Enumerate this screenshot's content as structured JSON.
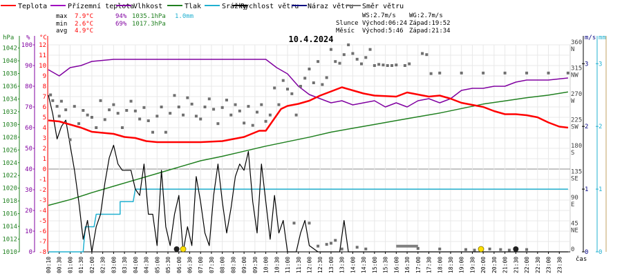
{
  "chart_data": {
    "type": "line",
    "title": "10.4.2024",
    "legend": [
      {
        "name": "Teplota",
        "color": "#ff0000"
      },
      {
        "name": "Přízemní teplota",
        "color": "#a000c0"
      },
      {
        "name": "Vlhkost",
        "color": "#8000a0"
      },
      {
        "name": "Tlak",
        "color": "#208020"
      },
      {
        "name": "Srážky",
        "color": "#20b0d0"
      },
      {
        "name": "Rychlost větru",
        "color": "#000000"
      },
      {
        "name": "Náraz větru",
        "color": "#000080"
      },
      {
        "name": "Směr větru",
        "color": "#707070"
      }
    ],
    "stats": {
      "max": {
        "label": "max",
        "temp": "7.9°C",
        "hum": "94%",
        "press": "1035.1hPa",
        "rain": "1.0mm"
      },
      "min": {
        "label": "min",
        "temp": "2.6°C",
        "hum": "69%",
        "press": "1017.3hPa"
      },
      "avg": {
        "label": "avg",
        "temp": "4.9°C"
      }
    },
    "info": {
      "ws": "WS:2.7m/s",
      "wg": "WG:2.7m/s",
      "sun_label": "Slunce",
      "sun_rise": "Východ:06:24",
      "sun_set": "Západ:19:52",
      "moon_label": "Měsíc",
      "moon_rise": "Východ:5:46",
      "moon_set": "Západ:21:34"
    },
    "axes": {
      "hpa_unit": "hPa",
      "pct_unit": "%",
      "temp_unit": "°C",
      "ms_unit": "m/s",
      "mm_unit": "mm",
      "x_unit": "čas",
      "hpa_ticks": [
        "1042",
        "1040",
        "1038",
        "1036",
        "1034",
        "1032",
        "1030",
        "1028",
        "1026",
        "1024",
        "1022",
        "1020",
        "1018",
        "1016",
        "1014",
        "1012",
        "1010"
      ],
      "pct_ticks": [
        "100",
        "90",
        "80",
        "70",
        "60",
        "50",
        "40",
        "30",
        "20",
        "10",
        "0"
      ],
      "temp_ticks": [
        "12",
        "11",
        "10",
        "9",
        "8",
        "7",
        "6",
        "5",
        "4",
        "3",
        "2",
        "1",
        "0",
        "-1",
        "-2",
        "-3",
        "-4",
        "-5",
        "-6",
        "-7",
        "-8"
      ],
      "dir_ticks": [
        {
          "deg": "360",
          "dir": "N",
          "v": 360
        },
        {
          "deg": "315",
          "dir": "NW",
          "v": 315
        },
        {
          "deg": "270",
          "dir": "W",
          "v": 270
        },
        {
          "deg": "225",
          "dir": "SW",
          "v": 225
        },
        {
          "deg": "180",
          "dir": "S",
          "v": 180
        },
        {
          "deg": "135",
          "dir": "SE",
          "v": 135
        },
        {
          "deg": "90",
          "dir": "E",
          "v": 90
        },
        {
          "deg": "45",
          "dir": "NE",
          "v": 45
        },
        {
          "deg": "0",
          "dir": "",
          "v": 0
        }
      ],
      "ms_ticks": [
        "3",
        "2",
        "1",
        "0"
      ],
      "mm_ticks": [
        "3",
        "2",
        "1",
        "0"
      ],
      "x_labels": [
        "00:10",
        "00:30",
        "01:00",
        "01:30",
        "02:00",
        "02:30",
        "03:00",
        "03:30",
        "04:00",
        "04:30",
        "05:00",
        "05:30",
        "06:00",
        "06:30",
        "07:00",
        "07:30",
        "08:00",
        "08:30",
        "09:00",
        "09:30",
        "10:00",
        "10:30",
        "11:00",
        "11:30",
        "12:00",
        "12:30",
        "13:00",
        "13:30",
        "14:00",
        "14:30",
        "15:00",
        "15:30",
        "16:00",
        "16:30",
        "17:00",
        "17:30",
        "18:00",
        "18:30",
        "19:00",
        "19:30",
        "20:00",
        "20:30",
        "21:00",
        "21:30",
        "22:00",
        "22:30",
        "23:00",
        "23:30"
      ]
    },
    "series": {
      "temperature_c": [
        [
          0,
          4.7
        ],
        [
          0.5,
          4.6
        ],
        [
          1,
          4.3
        ],
        [
          1.5,
          4.0
        ],
        [
          2,
          3.6
        ],
        [
          2.5,
          3.5
        ],
        [
          3,
          3.4
        ],
        [
          3.5,
          3.1
        ],
        [
          4,
          3.0
        ],
        [
          4.5,
          2.7
        ],
        [
          5,
          2.6
        ],
        [
          6,
          2.6
        ],
        [
          7,
          2.6
        ],
        [
          8,
          2.7
        ],
        [
          9,
          3.1
        ],
        [
          9.7,
          3.7
        ],
        [
          10,
          3.7
        ],
        [
          10.7,
          5.8
        ],
        [
          11,
          6.1
        ],
        [
          11.5,
          6.3
        ],
        [
          12,
          6.6
        ],
        [
          12.5,
          7.1
        ],
        [
          13,
          7.5
        ],
        [
          13.5,
          7.9
        ],
        [
          14,
          7.6
        ],
        [
          14.5,
          7.3
        ],
        [
          15,
          7.1
        ],
        [
          16,
          7.0
        ],
        [
          16.5,
          7.4
        ],
        [
          17,
          7.2
        ],
        [
          17.5,
          7.0
        ],
        [
          18,
          7.1
        ],
        [
          18.5,
          6.8
        ],
        [
          19,
          6.4
        ],
        [
          19.5,
          6.2
        ],
        [
          20,
          6.0
        ],
        [
          20.5,
          5.6
        ],
        [
          21,
          5.3
        ],
        [
          21.5,
          5.3
        ],
        [
          22,
          5.2
        ],
        [
          22.5,
          5.0
        ],
        [
          23,
          4.5
        ],
        [
          23.5,
          4.1
        ],
        [
          23.9,
          4.0
        ]
      ],
      "humidity_pct": [
        [
          0,
          88
        ],
        [
          0.5,
          85
        ],
        [
          1,
          89
        ],
        [
          1.5,
          90
        ],
        [
          2,
          92
        ],
        [
          3,
          93
        ],
        [
          4,
          93
        ],
        [
          5,
          93
        ],
        [
          6,
          93
        ],
        [
          7,
          93
        ],
        [
          8,
          93
        ],
        [
          9,
          93
        ],
        [
          10,
          93
        ],
        [
          10.5,
          89
        ],
        [
          11,
          86
        ],
        [
          11.5,
          80
        ],
        [
          12,
          76
        ],
        [
          12.5,
          74
        ],
        [
          13,
          72
        ],
        [
          13.5,
          73
        ],
        [
          14,
          71
        ],
        [
          14.5,
          72
        ],
        [
          15,
          73
        ],
        [
          15.5,
          70
        ],
        [
          16,
          72
        ],
        [
          16.5,
          70
        ],
        [
          17,
          73
        ],
        [
          17.5,
          74
        ],
        [
          18,
          72
        ],
        [
          18.5,
          74
        ],
        [
          19,
          78
        ],
        [
          19.5,
          79
        ],
        [
          20,
          79
        ],
        [
          20.5,
          80
        ],
        [
          21,
          80
        ],
        [
          21.5,
          82
        ],
        [
          22,
          83
        ],
        [
          22.5,
          83
        ],
        [
          23,
          83
        ],
        [
          23.9,
          84
        ]
      ],
      "pressure_hpa": [
        [
          0,
          1017.3
        ],
        [
          1,
          1018.2
        ],
        [
          2,
          1019.3
        ],
        [
          3,
          1020.3
        ],
        [
          4,
          1021.3
        ],
        [
          5,
          1022.3
        ],
        [
          6,
          1023.3
        ],
        [
          7,
          1024.3
        ],
        [
          8,
          1025.0
        ],
        [
          9,
          1025.8
        ],
        [
          10,
          1026.6
        ],
        [
          11,
          1027.3
        ],
        [
          12,
          1028.0
        ],
        [
          13,
          1028.8
        ],
        [
          14,
          1029.4
        ],
        [
          15,
          1030.0
        ],
        [
          16,
          1030.6
        ],
        [
          17,
          1031.2
        ],
        [
          18,
          1031.8
        ],
        [
          19,
          1032.5
        ],
        [
          20,
          1033.2
        ],
        [
          21,
          1033.7
        ],
        [
          22,
          1034.2
        ],
        [
          23,
          1034.6
        ],
        [
          23.9,
          1035.1
        ]
      ],
      "rain_mm": [
        [
          0,
          0
        ],
        [
          1.6,
          0
        ],
        [
          1.7,
          0.4
        ],
        [
          2.1,
          0.4
        ],
        [
          2.2,
          0.6
        ],
        [
          3.3,
          0.6
        ],
        [
          3.3,
          0.8
        ],
        [
          3.9,
          0.8
        ],
        [
          4.0,
          1.0
        ],
        [
          23.9,
          1.0
        ]
      ],
      "wind_speed_ms": [
        [
          0,
          2.5
        ],
        [
          0.2,
          2.2
        ],
        [
          0.4,
          1.8
        ],
        [
          0.6,
          2.0
        ],
        [
          0.8,
          2.1
        ],
        [
          1,
          1.7
        ],
        [
          1.2,
          1.3
        ],
        [
          1.4,
          0.8
        ],
        [
          1.6,
          0.2
        ],
        [
          1.8,
          0.5
        ],
        [
          2,
          0.0
        ],
        [
          2.2,
          0.4
        ],
        [
          2.4,
          0.6
        ],
        [
          2.6,
          1.1
        ],
        [
          2.8,
          1.5
        ],
        [
          3.0,
          1.7
        ],
        [
          3.2,
          1.4
        ],
        [
          3.4,
          1.3
        ],
        [
          3.6,
          1.3
        ],
        [
          3.8,
          1.3
        ],
        [
          4.0,
          1.0
        ],
        [
          4.2,
          0.9
        ],
        [
          4.4,
          1.4
        ],
        [
          4.6,
          0.6
        ],
        [
          4.8,
          0.6
        ],
        [
          5.0,
          0.1
        ],
        [
          5.2,
          1.3
        ],
        [
          5.4,
          0.4
        ],
        [
          5.6,
          0.1
        ],
        [
          5.8,
          0.6
        ],
        [
          6.0,
          0.9
        ],
        [
          6.2,
          0.0
        ],
        [
          6.4,
          0.4
        ],
        [
          6.6,
          0.1
        ],
        [
          6.8,
          1.2
        ],
        [
          7.0,
          0.8
        ],
        [
          7.2,
          0.3
        ],
        [
          7.4,
          0.1
        ],
        [
          7.6,
          0.9
        ],
        [
          7.8,
          1.4
        ],
        [
          8.0,
          0.8
        ],
        [
          8.2,
          0.3
        ],
        [
          8.4,
          0.7
        ],
        [
          8.6,
          1.2
        ],
        [
          8.8,
          1.4
        ],
        [
          9.0,
          1.3
        ],
        [
          9.2,
          1.6
        ],
        [
          9.4,
          0.8
        ],
        [
          9.6,
          0.3
        ],
        [
          9.8,
          1.4
        ],
        [
          10.0,
          0.8
        ],
        [
          10.2,
          0.2
        ],
        [
          10.4,
          0.9
        ],
        [
          10.6,
          0.3
        ],
        [
          10.8,
          0.5
        ],
        [
          11,
          0.0
        ],
        [
          11.4,
          0.0
        ],
        [
          11.6,
          0.3
        ],
        [
          11.8,
          0.5
        ],
        [
          12.0,
          0.1
        ],
        [
          12.4,
          0.0
        ],
        [
          13.0,
          0.0
        ],
        [
          13.4,
          0.0
        ],
        [
          13.6,
          0.5
        ],
        [
          13.8,
          0.0
        ],
        [
          14.2,
          0.0
        ],
        [
          20.0,
          0.0
        ],
        [
          23.9,
          0.0
        ]
      ],
      "wind_dir_deg": [
        [
          0.1,
          273
        ],
        [
          0.2,
          263
        ],
        [
          0.4,
          253
        ],
        [
          0.5,
          236
        ],
        [
          0.6,
          262
        ],
        [
          0.8,
          247
        ],
        [
          1.0,
          195
        ],
        [
          1.2,
          253
        ],
        [
          1.4,
          223
        ],
        [
          1.6,
          246
        ],
        [
          1.8,
          238
        ],
        [
          2.0,
          234
        ],
        [
          2.2,
          216
        ],
        [
          2.4,
          263
        ],
        [
          2.6,
          230
        ],
        [
          2.8,
          247
        ],
        [
          3.0,
          256
        ],
        [
          3.2,
          241
        ],
        [
          3.4,
          216
        ],
        [
          3.6,
          246
        ],
        [
          3.8,
          262
        ],
        [
          4.0,
          245
        ],
        [
          4.2,
          231
        ],
        [
          4.4,
          251
        ],
        [
          4.6,
          228
        ],
        [
          4.8,
          208
        ],
        [
          5.0,
          236
        ],
        [
          5.2,
          252
        ],
        [
          5.4,
          208
        ],
        [
          5.6,
          241
        ],
        [
          5.8,
          272
        ],
        [
          6.0,
          252
        ],
        [
          6.2,
          238
        ],
        [
          6.4,
          268
        ],
        [
          6.6,
          257
        ],
        [
          6.8,
          236
        ],
        [
          7.0,
          231
        ],
        [
          7.2,
          252
        ],
        [
          7.4,
          266
        ],
        [
          7.6,
          248
        ],
        [
          7.8,
          223
        ],
        [
          8.0,
          251
        ],
        [
          8.2,
          264
        ],
        [
          8.4,
          238
        ],
        [
          8.6,
          256
        ],
        [
          8.8,
          245
        ],
        [
          9.0,
          224
        ],
        [
          9.2,
          253
        ],
        [
          9.4,
          220
        ],
        [
          9.6,
          243
        ],
        [
          9.8,
          256
        ],
        [
          10.0,
          227
        ],
        [
          10.2,
          238
        ],
        [
          10.4,
          285
        ],
        [
          10.6,
          256
        ],
        [
          10.8,
          298
        ],
        [
          11.0,
          283
        ],
        [
          11.2,
          275
        ],
        [
          11.4,
          238
        ],
        [
          11.6,
          288
        ],
        [
          11.8,
          302
        ],
        [
          12.0,
          318
        ],
        [
          12.2,
          294
        ],
        [
          12.4,
          331
        ],
        [
          12.6,
          291
        ],
        [
          12.8,
          303
        ],
        [
          13.0,
          352
        ],
        [
          13.2,
          331
        ],
        [
          13.4,
          328
        ],
        [
          13.6,
          343
        ],
        [
          13.8,
          360
        ],
        [
          14.0,
          345
        ],
        [
          14.2,
          335
        ],
        [
          14.4,
          327
        ],
        [
          14.6,
          338
        ],
        [
          14.8,
          352
        ],
        [
          15.0,
          324
        ],
        [
          15.2,
          326
        ],
        [
          15.4,
          325
        ],
        [
          15.6,
          324
        ],
        [
          15.8,
          324
        ],
        [
          16.0,
          325
        ],
        [
          16.4,
          324
        ],
        [
          16.6,
          327
        ],
        [
          17.2,
          345
        ],
        [
          17.4,
          343
        ],
        [
          17.6,
          310
        ],
        [
          18.0,
          311
        ],
        [
          19.0,
          311
        ],
        [
          20.0,
          311
        ],
        [
          21.0,
          311
        ],
        [
          22.0,
          311
        ],
        [
          23.0,
          311
        ],
        [
          23.9,
          311
        ]
      ],
      "gust_wind_dir_deg": [
        [
          11.3,
          50
        ],
        [
          12.0,
          50
        ],
        [
          12.4,
          10
        ],
        [
          12.8,
          13
        ],
        [
          13.0,
          15
        ],
        [
          13.2,
          20
        ],
        [
          13.5,
          5
        ],
        [
          14.2,
          8
        ],
        [
          14.6,
          5
        ],
        [
          17.0,
          6
        ],
        [
          18.0,
          5
        ],
        [
          19.2,
          4
        ],
        [
          19.6,
          3
        ],
        [
          20.3,
          5
        ],
        [
          20.8,
          4
        ],
        [
          21.2,
          3
        ],
        [
          22.0,
          4
        ]
      ],
      "low_dir_segment_deg": [
        [
          16.0,
          10
        ],
        [
          17.0,
          10
        ]
      ],
      "markers_rain_drop": [
        [
          5.9,
          0.0
        ],
        [
          21.5,
          0.0
        ]
      ],
      "markers_sun": [
        [
          6.2,
          0.0
        ],
        [
          19.9,
          0.0
        ]
      ]
    }
  }
}
